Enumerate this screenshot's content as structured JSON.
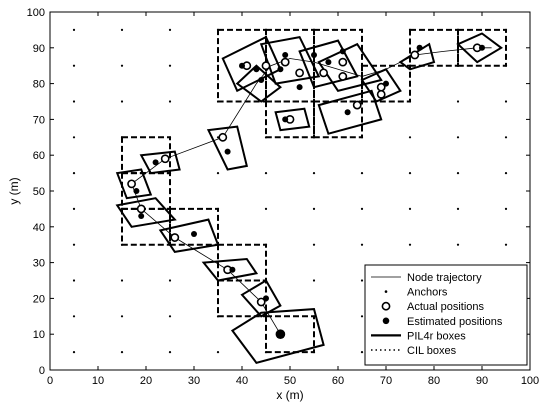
{
  "chart_data": {
    "type": "scatter",
    "xlabel": "x (m)",
    "ylabel": "y (m)",
    "xlim": [
      0,
      100
    ],
    "ylim": [
      0,
      100
    ],
    "xticks": [
      0,
      10,
      20,
      30,
      40,
      50,
      60,
      70,
      80,
      90,
      100
    ],
    "yticks": [
      0,
      10,
      20,
      30,
      40,
      50,
      60,
      70,
      80,
      90,
      100
    ],
    "grid": false,
    "legend_position": "bottom-right",
    "legend": [
      {
        "key": "trajectory",
        "label": "Node trajectory"
      },
      {
        "key": "anchors",
        "label": "Anchors"
      },
      {
        "key": "actual",
        "label": "Actual positions"
      },
      {
        "key": "estimated",
        "label": "Estimated positions"
      },
      {
        "key": "pil4r",
        "label": "PIL4r boxes"
      },
      {
        "key": "cil",
        "label": "CIL boxes"
      }
    ],
    "anchors": {
      "x": [
        5,
        15,
        25,
        35,
        45,
        55,
        65,
        75,
        85,
        95
      ],
      "y": [
        5,
        15,
        25,
        35,
        45,
        55,
        65,
        75,
        85,
        95
      ]
    },
    "trajectory": [
      [
        48,
        10
      ],
      [
        44,
        19
      ],
      [
        37,
        28
      ],
      [
        26,
        37
      ],
      [
        19,
        45
      ],
      [
        17,
        52
      ],
      [
        24,
        59
      ],
      [
        36,
        65
      ],
      [
        43,
        80
      ],
      [
        46,
        85
      ],
      [
        50,
        87
      ],
      [
        55,
        86
      ],
      [
        60,
        84
      ],
      [
        65,
        82
      ],
      [
        70,
        84
      ],
      [
        76,
        88
      ],
      [
        82,
        89
      ],
      [
        89,
        90
      ],
      [
        92,
        90
      ]
    ],
    "actual_positions": [
      [
        44,
        19
      ],
      [
        37,
        28
      ],
      [
        26,
        37
      ],
      [
        19,
        45
      ],
      [
        17,
        52
      ],
      [
        24,
        59
      ],
      [
        36,
        65
      ],
      [
        41,
        85
      ],
      [
        45,
        85
      ],
      [
        49,
        86
      ],
      [
        52,
        83
      ],
      [
        57,
        83
      ],
      [
        61,
        82
      ],
      [
        61,
        86
      ],
      [
        64,
        74
      ],
      [
        50,
        70
      ],
      [
        69,
        79
      ],
      [
        69,
        77
      ],
      [
        76,
        88
      ],
      [
        89,
        90
      ]
    ],
    "estimated_positions": [
      [
        48,
        10
      ],
      [
        45,
        20
      ],
      [
        38,
        28
      ],
      [
        30,
        38
      ],
      [
        19,
        43
      ],
      [
        18,
        50
      ],
      [
        22,
        58
      ],
      [
        37,
        61
      ],
      [
        40,
        85
      ],
      [
        43,
        84
      ],
      [
        44,
        81
      ],
      [
        48,
        84
      ],
      [
        49,
        88
      ],
      [
        52,
        79
      ],
      [
        55,
        88
      ],
      [
        58,
        86
      ],
      [
        61,
        89
      ],
      [
        62,
        72
      ],
      [
        49,
        70
      ],
      [
        70,
        80
      ],
      [
        77,
        90
      ],
      [
        90,
        90
      ]
    ],
    "pil4r_boxes": [
      [
        [
          38,
          11
        ],
        [
          43,
          2
        ],
        [
          57,
          7
        ],
        [
          55,
          17
        ],
        [
          44,
          16
        ]
      ],
      [
        [
          40,
          21
        ],
        [
          45,
          25
        ],
        [
          48,
          18
        ],
        [
          44,
          15
        ]
      ],
      [
        [
          32,
          30
        ],
        [
          41,
          31
        ],
        [
          43,
          27
        ],
        [
          35,
          25
        ]
      ],
      [
        [
          23,
          39
        ],
        [
          33,
          42
        ],
        [
          35,
          35
        ],
        [
          26,
          33
        ]
      ],
      [
        [
          14,
          46
        ],
        [
          22,
          48
        ],
        [
          26,
          42
        ],
        [
          17,
          40
        ]
      ],
      [
        [
          14,
          55
        ],
        [
          19,
          56
        ],
        [
          21,
          49
        ],
        [
          16,
          48
        ]
      ],
      [
        [
          19,
          60
        ],
        [
          26,
          61
        ],
        [
          27,
          56
        ],
        [
          21,
          55
        ]
      ],
      [
        [
          33,
          67
        ],
        [
          39,
          68
        ],
        [
          41,
          57
        ],
        [
          37,
          56
        ]
      ],
      [
        [
          36,
          87
        ],
        [
          45,
          93
        ],
        [
          48,
          84
        ],
        [
          39,
          78
        ]
      ],
      [
        [
          44,
          91
        ],
        [
          52,
          93
        ],
        [
          56,
          82
        ],
        [
          47,
          80
        ]
      ],
      [
        [
          52,
          89
        ],
        [
          60,
          92
        ],
        [
          64,
          82
        ],
        [
          55,
          79
        ]
      ],
      [
        [
          56,
          86
        ],
        [
          64,
          91
        ],
        [
          69,
          81
        ],
        [
          60,
          78
        ]
      ],
      [
        [
          39,
          80
        ],
        [
          43,
          85
        ],
        [
          48,
          79
        ],
        [
          44,
          75
        ]
      ],
      [
        [
          56,
          74
        ],
        [
          67,
          78
        ],
        [
          69,
          70
        ],
        [
          58,
          66
        ]
      ],
      [
        [
          47,
          72
        ],
        [
          53,
          73
        ],
        [
          54,
          68
        ],
        [
          48,
          67
        ]
      ],
      [
        [
          65,
          81
        ],
        [
          70,
          84
        ],
        [
          73,
          78
        ],
        [
          68,
          75
        ]
      ],
      [
        [
          73,
          86
        ],
        [
          79,
          91
        ],
        [
          80,
          86
        ],
        [
          75,
          84
        ]
      ],
      [
        [
          85,
          91
        ],
        [
          90,
          94
        ],
        [
          94,
          90
        ],
        [
          89,
          86
        ]
      ]
    ],
    "cil_boxes": [
      [
        [
          45,
          5
        ],
        [
          55,
          15
        ]
      ],
      [
        [
          35,
          15
        ],
        [
          45,
          25
        ]
      ],
      [
        [
          35,
          25
        ],
        [
          45,
          35
        ]
      ],
      [
        [
          25,
          35
        ],
        [
          35,
          45
        ]
      ],
      [
        [
          15,
          35
        ],
        [
          25,
          45
        ]
      ],
      [
        [
          15,
          45
        ],
        [
          25,
          55
        ]
      ],
      [
        [
          15,
          55
        ],
        [
          25,
          65
        ]
      ],
      [
        [
          35,
          75
        ],
        [
          45,
          95
        ]
      ],
      [
        [
          45,
          75
        ],
        [
          55,
          95
        ]
      ],
      [
        [
          55,
          75
        ],
        [
          65,
          95
        ]
      ],
      [
        [
          65,
          75
        ],
        [
          75,
          85
        ]
      ],
      [
        [
          45,
          65
        ],
        [
          55,
          75
        ]
      ],
      [
        [
          55,
          65
        ],
        [
          65,
          75
        ]
      ],
      [
        [
          75,
          85
        ],
        [
          85,
          95
        ]
      ],
      [
        [
          85,
          85
        ],
        [
          95,
          95
        ]
      ]
    ]
  }
}
